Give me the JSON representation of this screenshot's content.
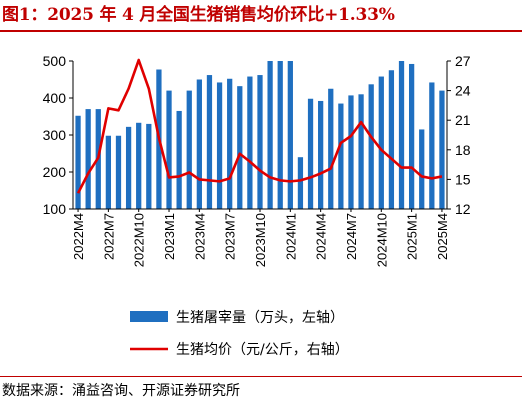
{
  "title": "图1：2025 年 4 月全国生猪销售均价环比+1.33%",
  "source": "数据来源：涌益咨询、开源证券研究所",
  "colors": {
    "bar": "#1f6fc0",
    "line": "#e00000",
    "title": "#c00000"
  },
  "chart_data": {
    "type": "bar",
    "categories": [
      "2022M4",
      "2022M5",
      "2022M6",
      "2022M7",
      "2022M8",
      "2022M9",
      "2022M10",
      "2022M11",
      "2022M12",
      "2023M1",
      "2023M2",
      "2023M3",
      "2023M4",
      "2023M5",
      "2023M6",
      "2023M7",
      "2023M8",
      "2023M9",
      "2023M10",
      "2023M11",
      "2023M12",
      "2024M1",
      "2024M2",
      "2024M3",
      "2024M4",
      "2024M5",
      "2024M6",
      "2024M7",
      "2024M8",
      "2024M9",
      "2024M10",
      "2024M11",
      "2024M12",
      "2025M1",
      "2025M2",
      "2025M3",
      "2025M4"
    ],
    "x_tick_labels": [
      "2022M4",
      "2022M7",
      "2022M10",
      "2023M1",
      "2023M4",
      "2023M7",
      "2023M10",
      "2024M1",
      "2024M4",
      "2024M7",
      "2024M10",
      "2025M1",
      "2025M4"
    ],
    "series": [
      {
        "name": "生猪屠宰量（万头，左轴）",
        "type": "bar",
        "axis": "left",
        "values": [
          352,
          370,
          370,
          298,
          298,
          322,
          333,
          330,
          477,
          420,
          365,
          420,
          450,
          462,
          442,
          452,
          432,
          458,
          462,
          500,
          500,
          500,
          240,
          398,
          392,
          425,
          385,
          407,
          410,
          437,
          458,
          475,
          500,
          492,
          315,
          442,
          420
        ]
      },
      {
        "name": "生猪均价（元/公斤，右轴）",
        "type": "line",
        "axis": "right",
        "values": [
          13.6,
          15.6,
          17.2,
          22.2,
          22.0,
          24.2,
          27.1,
          24.2,
          19.2,
          15.2,
          15.3,
          15.7,
          15.0,
          14.9,
          14.8,
          15.1,
          17.6,
          16.8,
          15.9,
          15.2,
          14.9,
          14.8,
          14.9,
          15.2,
          15.6,
          16.1,
          18.7,
          19.4,
          20.8,
          19.3,
          18.0,
          17.1,
          16.2,
          16.2,
          15.3,
          15.1,
          15.3
        ]
      }
    ],
    "y_left": {
      "min": 100,
      "max": 500,
      "ticks": [
        100,
        200,
        300,
        400,
        500
      ]
    },
    "y_right": {
      "min": 12,
      "max": 27,
      "ticks": [
        12,
        15,
        18,
        21,
        24,
        27
      ]
    },
    "legend": {
      "position": "bottom"
    },
    "grid": false
  }
}
